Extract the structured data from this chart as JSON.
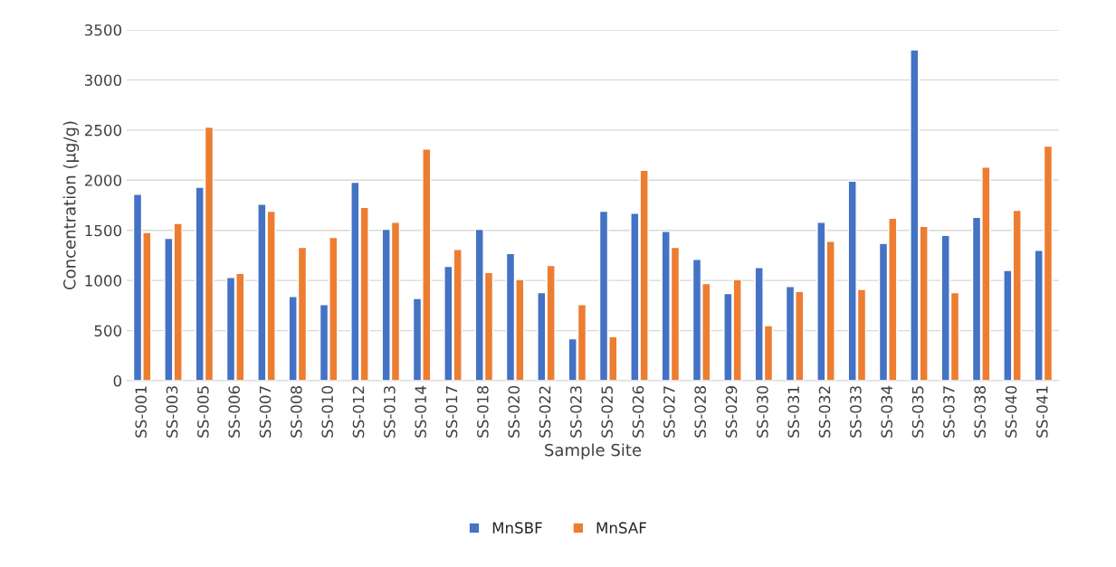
{
  "chart_data": {
    "type": "bar",
    "xlabel": "Sample Site",
    "ylabel": "Concentration (µg/g)",
    "categories": [
      "SS-001",
      "SS-003",
      "SS-005",
      "SS-006",
      "SS-007",
      "SS-008",
      "SS-010",
      "SS-012",
      "SS-013",
      "SS-014",
      "SS-017",
      "SS-018",
      "SS-020",
      "SS-022",
      "SS-023",
      "SS-025",
      "SS-026",
      "SS-027",
      "SS-028",
      "SS-029",
      "SS-030",
      "SS-031",
      "SS-032",
      "SS-033",
      "SS-034",
      "SS-035",
      "SS-037",
      "SS-038",
      "SS-040",
      "SS-041"
    ],
    "series": [
      {
        "name": "MnSBF",
        "color": "#4472c4",
        "values": [
          1860,
          1420,
          1930,
          1030,
          1760,
          840,
          760,
          1980,
          1510,
          820,
          1140,
          1510,
          1270,
          880,
          420,
          1690,
          1670,
          1490,
          1210,
          870,
          1130,
          940,
          1580,
          1990,
          1370,
          3300,
          1450,
          1630,
          1100,
          1300
        ]
      },
      {
        "name": "MnSAF",
        "color": "#ed7d31",
        "values": [
          1480,
          1570,
          2530,
          1070,
          1690,
          1330,
          1430,
          1730,
          1580,
          2310,
          1310,
          1080,
          1010,
          1150,
          760,
          440,
          2100,
          1330,
          970,
          1010,
          550,
          890,
          1390,
          910,
          1620,
          1540,
          880,
          2130,
          1700,
          2340
        ]
      }
    ],
    "ylim": [
      0,
      3500
    ],
    "yticks": [
      0,
      500,
      1000,
      1500,
      2000,
      2500,
      3000,
      3500
    ],
    "grid": "y",
    "legend": "bottom"
  }
}
